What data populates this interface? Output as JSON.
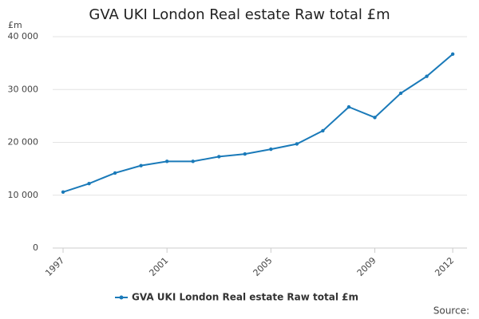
{
  "chart_data": {
    "type": "line",
    "title": "GVA UKI London Real estate Raw total £m",
    "ylabel": "£m",
    "source": "Source:",
    "x": [
      1997,
      1998,
      1999,
      2000,
      2001,
      2002,
      2003,
      2004,
      2005,
      2006,
      2007,
      2008,
      2009,
      2010,
      2011,
      2012
    ],
    "series": [
      {
        "name": "GVA UKI London Real estate Raw total £m",
        "color": "#1a7ab9",
        "values": [
          10600,
          12200,
          14200,
          15600,
          16400,
          16400,
          17300,
          17800,
          18700,
          19700,
          22200,
          26700,
          24700,
          29300,
          32500,
          36700
        ]
      }
    ],
    "xlim": [
      1996.6,
      2012.55
    ],
    "xticks": [
      1997,
      2001,
      2005,
      2009,
      2012
    ],
    "ylim": [
      0,
      40000
    ],
    "yticks": [
      0,
      {
        "value": 10000,
        "label": "10 000"
      },
      {
        "value": 20000,
        "label": "20 000"
      },
      {
        "value": 30000,
        "label": "30 000"
      },
      {
        "value": 40000,
        "label": "40 000"
      }
    ],
    "grid": true
  }
}
